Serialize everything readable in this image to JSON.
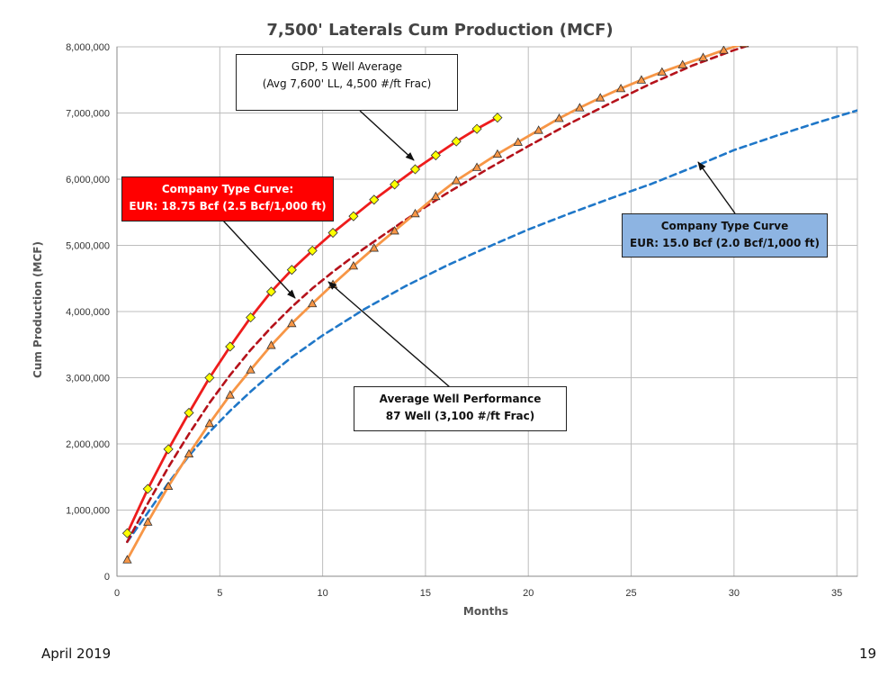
{
  "footer": {
    "date": "April 2019",
    "page": "19"
  },
  "colors": {
    "gdp": "#ee1c1c",
    "type_high": "#b5121b",
    "avg_well": "#f79646",
    "type_low": "#1f77c8",
    "diamond_fill": "#ffff00",
    "red_box": "#ff0000",
    "blue_box": "#8db4e2"
  },
  "chart_data": {
    "type": "line",
    "title": "7,500' Laterals Cum Production (MCF)",
    "xlabel": "Months",
    "ylabel": "Cum Production (MCF)",
    "xlim": [
      0,
      36
    ],
    "ylim": [
      0,
      8000000
    ],
    "xticks": [
      0,
      5,
      10,
      15,
      20,
      25,
      30,
      35
    ],
    "yticks": [
      0,
      1000000,
      2000000,
      3000000,
      4000000,
      5000000,
      6000000,
      7000000,
      8000000
    ],
    "ytick_labels": [
      "0",
      "1,000,000",
      "2,000,000",
      "3,000,000",
      "4,000,000",
      "5,000,000",
      "6,000,000",
      "7,000,000",
      "8,000,000"
    ],
    "grid": true,
    "series": [
      {
        "name": "GDP, 5 Well Average",
        "style": "solid",
        "marker": "diamond",
        "color_key": "gdp",
        "x": [
          0.5,
          1.5,
          2.5,
          3.5,
          4.5,
          5.5,
          6.5,
          7.5,
          8.5,
          9.5,
          10.5,
          11.5,
          12.5,
          13.5,
          14.5,
          15.5,
          16.5,
          17.5,
          18.5
        ],
        "y": [
          650000,
          1320000,
          1920000,
          2470000,
          3000000,
          3470000,
          3910000,
          4300000,
          4630000,
          4920000,
          5190000,
          5440000,
          5690000,
          5920000,
          6150000,
          6360000,
          6570000,
          6760000,
          6930000
        ]
      },
      {
        "name": "Company Type Curve EUR: 18.75 Bcf",
        "style": "dashed",
        "marker": "none",
        "color_key": "type_high",
        "x": [
          0.5,
          1.5,
          2.5,
          3.5,
          4.5,
          5.5,
          6.5,
          7.5,
          8.5,
          9.5,
          10.5,
          12,
          14,
          16,
          18,
          20,
          22,
          24,
          26,
          28,
          30,
          31
        ],
        "y": [
          520000,
          1100000,
          1650000,
          2150000,
          2620000,
          3040000,
          3420000,
          3760000,
          4070000,
          4350000,
          4600000,
          4950000,
          5380000,
          5780000,
          6150000,
          6500000,
          6840000,
          7150000,
          7450000,
          7720000,
          7950000,
          8050000
        ]
      },
      {
        "name": "Average Well Performance 87 Well",
        "style": "solid",
        "marker": "triangle",
        "color_key": "avg_well",
        "x": [
          0.5,
          1.5,
          2.5,
          3.5,
          4.5,
          5.5,
          6.5,
          7.5,
          8.5,
          9.5,
          10.5,
          11.5,
          12.5,
          13.5,
          14.5,
          15.5,
          16.5,
          17.5,
          18.5,
          19.5,
          20.5,
          21.5,
          22.5,
          23.5,
          24.5,
          25.5,
          26.5,
          27.5,
          28.5,
          29.5,
          30.5
        ],
        "y": [
          250000,
          820000,
          1360000,
          1850000,
          2310000,
          2740000,
          3120000,
          3490000,
          3820000,
          4120000,
          4410000,
          4690000,
          4960000,
          5220000,
          5480000,
          5740000,
          5980000,
          6180000,
          6380000,
          6560000,
          6740000,
          6920000,
          7080000,
          7230000,
          7370000,
          7500000,
          7620000,
          7730000,
          7840000,
          7950000,
          8050000
        ]
      },
      {
        "name": "Company Type Curve EUR: 15.0 Bcf",
        "style": "dashed",
        "marker": "none",
        "color_key": "type_low",
        "x": [
          0.5,
          1.5,
          2.5,
          3.5,
          4.5,
          5.5,
          6.5,
          7.5,
          8.5,
          10,
          12,
          14,
          16,
          18,
          20,
          22,
          24,
          26,
          28,
          30,
          32,
          34,
          36
        ],
        "y": [
          520000,
          960000,
          1410000,
          1820000,
          2180000,
          2500000,
          2790000,
          3060000,
          3310000,
          3640000,
          4030000,
          4380000,
          4690000,
          4970000,
          5240000,
          5480000,
          5710000,
          5930000,
          6180000,
          6440000,
          6650000,
          6850000,
          7040000
        ]
      }
    ],
    "annotations": [
      {
        "key": "gdp_box",
        "line1": "GDP, 5 Well Average",
        "line2": "(Avg 7,600' LL, 4,500 #/ft Frac)"
      },
      {
        "key": "type_high_box",
        "line1": "Company Type Curve:",
        "line2": "EUR: 18.75 Bcf (2.5 Bcf/1,000 ft)"
      },
      {
        "key": "avg_box",
        "line1": "Average Well Performance",
        "line2": "87 Well (3,100 #/ft Frac)"
      },
      {
        "key": "type_low_box",
        "line1": "Company Type Curve",
        "line2": "EUR: 15.0 Bcf (2.0 Bcf/1,000 ft)"
      }
    ]
  }
}
